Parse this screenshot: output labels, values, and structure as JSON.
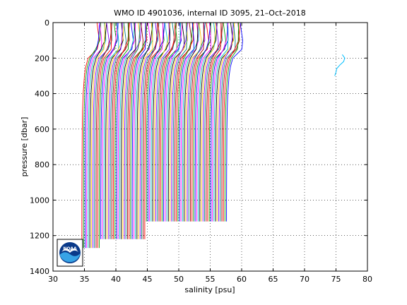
{
  "chart_data": {
    "type": "line",
    "title": "WMO ID 4901036, internal ID 3095, 21–Oct–2018",
    "xlabel": "salinity [psu]",
    "ylabel": "pressure [dbar]",
    "xlim": [
      30,
      80
    ],
    "ylim": [
      0,
      1400
    ],
    "y_reversed": true,
    "grid": true,
    "x_ticks": [
      30,
      35,
      40,
      45,
      50,
      55,
      60,
      65,
      70,
      75,
      80
    ],
    "y_ticks": [
      0,
      200,
      400,
      600,
      800,
      1000,
      1200,
      1400
    ],
    "profile_offset_psu": 0.25,
    "profile_count": 93,
    "profile_template": {
      "pressure": [
        0,
        100,
        150,
        200,
        250,
        300,
        400,
        500,
        600,
        800,
        1000,
        1200,
        1270
      ],
      "salinity": [
        37.0,
        37.05,
        36.7,
        35.6,
        35.2,
        35.0,
        34.8,
        34.7,
        34.65,
        34.62,
        34.6,
        34.6,
        34.6
      ]
    },
    "profile_max_pressure_rule": [
      {
        "from_index": 0,
        "to_index": 11,
        "max_pressure": 1270
      },
      {
        "from_index": 12,
        "to_index": 40,
        "max_pressure": 1220
      },
      {
        "from_index": 41,
        "to_index": 92,
        "max_pressure": 1120
      }
    ],
    "outlier_profile": {
      "pressure": [
        180,
        200,
        220,
        240,
        260,
        280,
        300
      ],
      "salinity": [
        76.0,
        76.4,
        76.2,
        75.6,
        75.1,
        75.0,
        74.8
      ]
    },
    "series_colors": [
      "#ff0000",
      "#00a000",
      "#0000ff",
      "#ff00ff",
      "#00c0c0",
      "#000000",
      "#ffbf00",
      "#8000ff",
      "#008080",
      "#a00000"
    ],
    "outlier_color": "#00bfff"
  },
  "logo": {
    "text": "NOAA",
    "colors": [
      "#0a3a8a",
      "#37a3e6",
      "#ffffff"
    ]
  }
}
